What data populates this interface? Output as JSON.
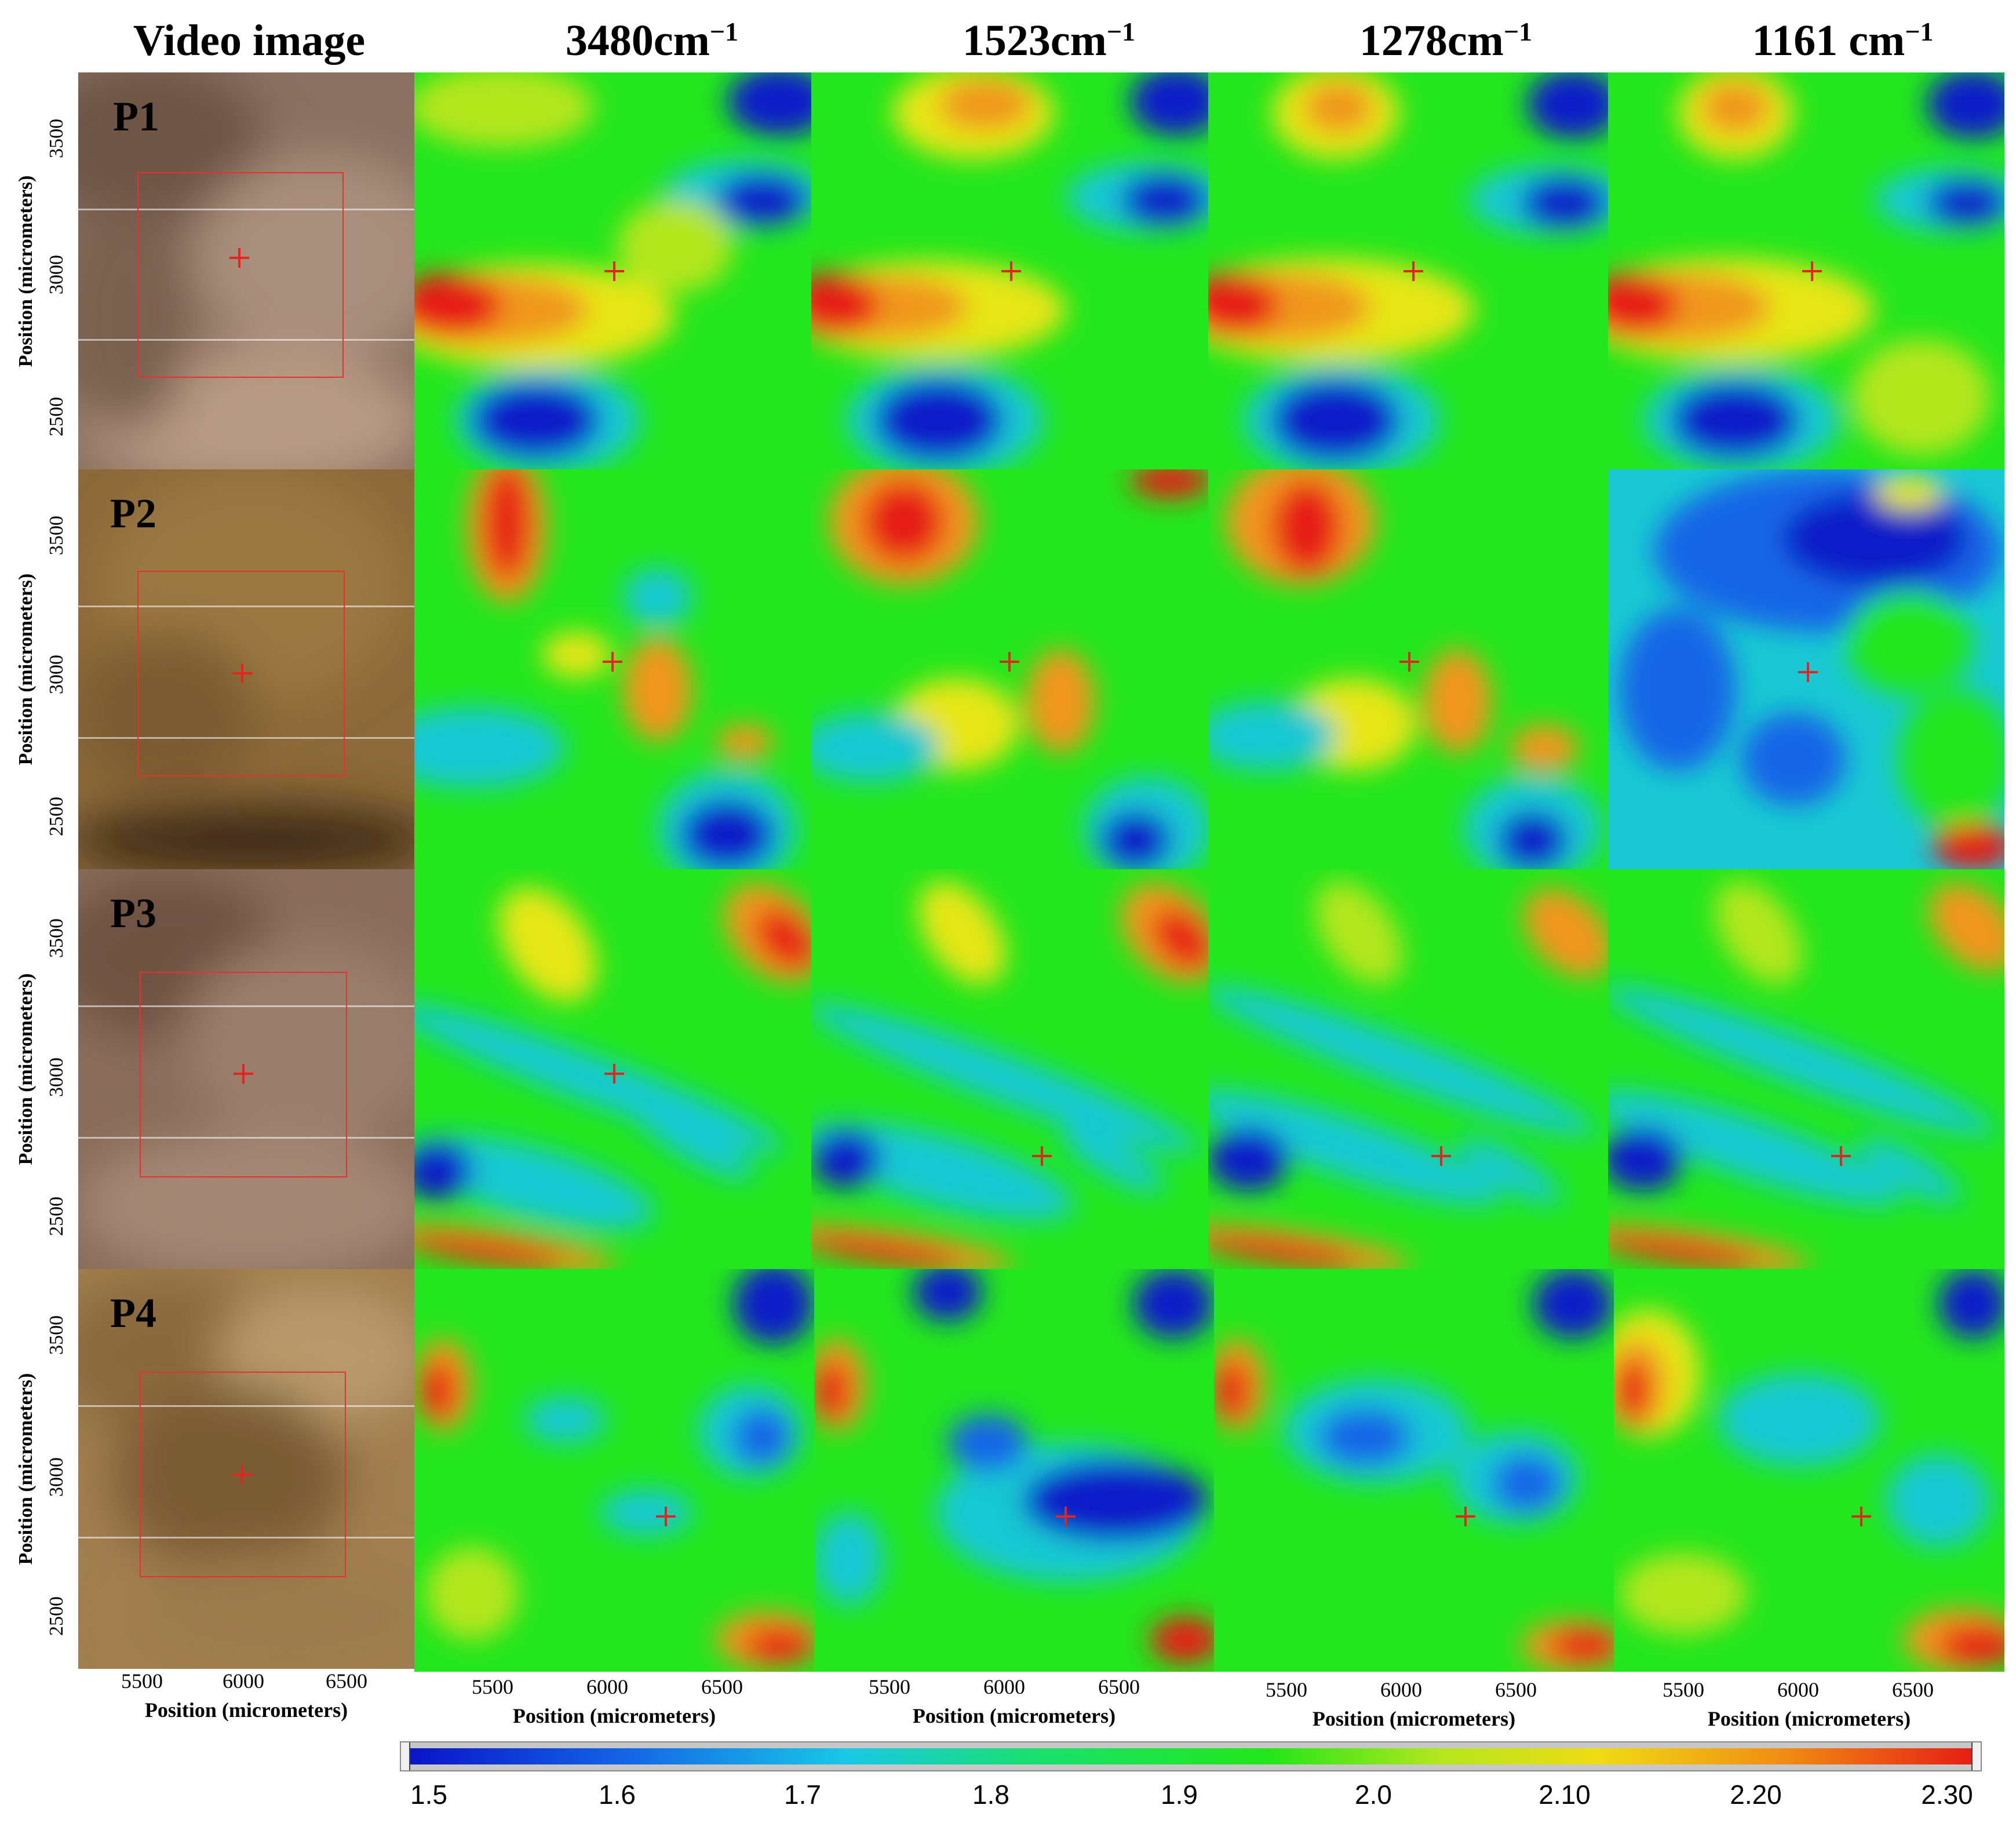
{
  "column_titles": [
    {
      "main": "Video image",
      "sup": ""
    },
    {
      "main": "3480cm",
      "sup": "−1"
    },
    {
      "main": "1523cm",
      "sup": "−1"
    },
    {
      "main": "1278cm",
      "sup": "−1"
    },
    {
      "main": "1161 cm",
      "sup": "−1"
    }
  ],
  "row_labels": [
    "P1",
    "P2",
    "P3",
    "P4"
  ],
  "axis": {
    "ylabel": "Position (micrometers)",
    "xlabel": "Position (micrometers)",
    "yticks": [
      "3500",
      "3000",
      "2500"
    ],
    "xticks": [
      "5500",
      "6000",
      "6500"
    ]
  },
  "colorbar": {
    "ticks": [
      "1.5",
      "1.6",
      "1.7",
      "1.8",
      "1.9",
      "2.0",
      "2.10",
      "2.20",
      "2.30"
    ],
    "colors": [
      "#0a14c8",
      "#1466e6",
      "#19c8e6",
      "#19e060",
      "#23e619",
      "#b4e61e",
      "#f0dc14",
      "#f08c14",
      "#e61e14"
    ]
  },
  "palette": {
    "blue": "#0a1ec8",
    "cyan": "#1ec8d2",
    "green": "#23e61e",
    "yellow": "#e6e614",
    "orange": "#f0961e",
    "red": "#e61e14",
    "crosshair": "#e8231f"
  }
}
